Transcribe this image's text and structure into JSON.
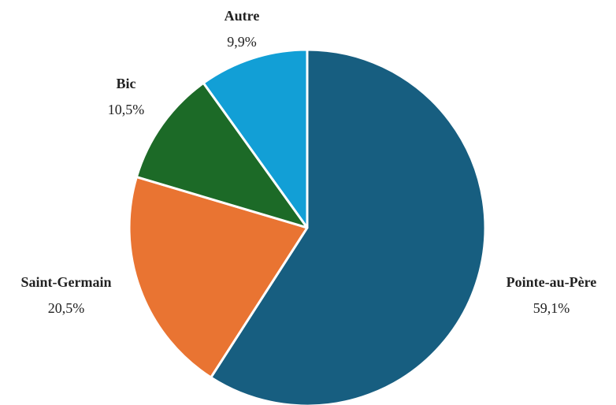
{
  "chart_data": {
    "type": "pie",
    "categories": [
      "Pointe-au-Père",
      "Saint-Germain",
      "Bic",
      "Autre"
    ],
    "values": [
      59.1,
      20.5,
      10.5,
      9.9
    ],
    "value_labels": [
      "59,1%",
      "20,5%",
      "10,5%",
      "9,9%"
    ],
    "colors": [
      "#175e80",
      "#e97432",
      "#1c6a27",
      "#129fd6"
    ]
  }
}
